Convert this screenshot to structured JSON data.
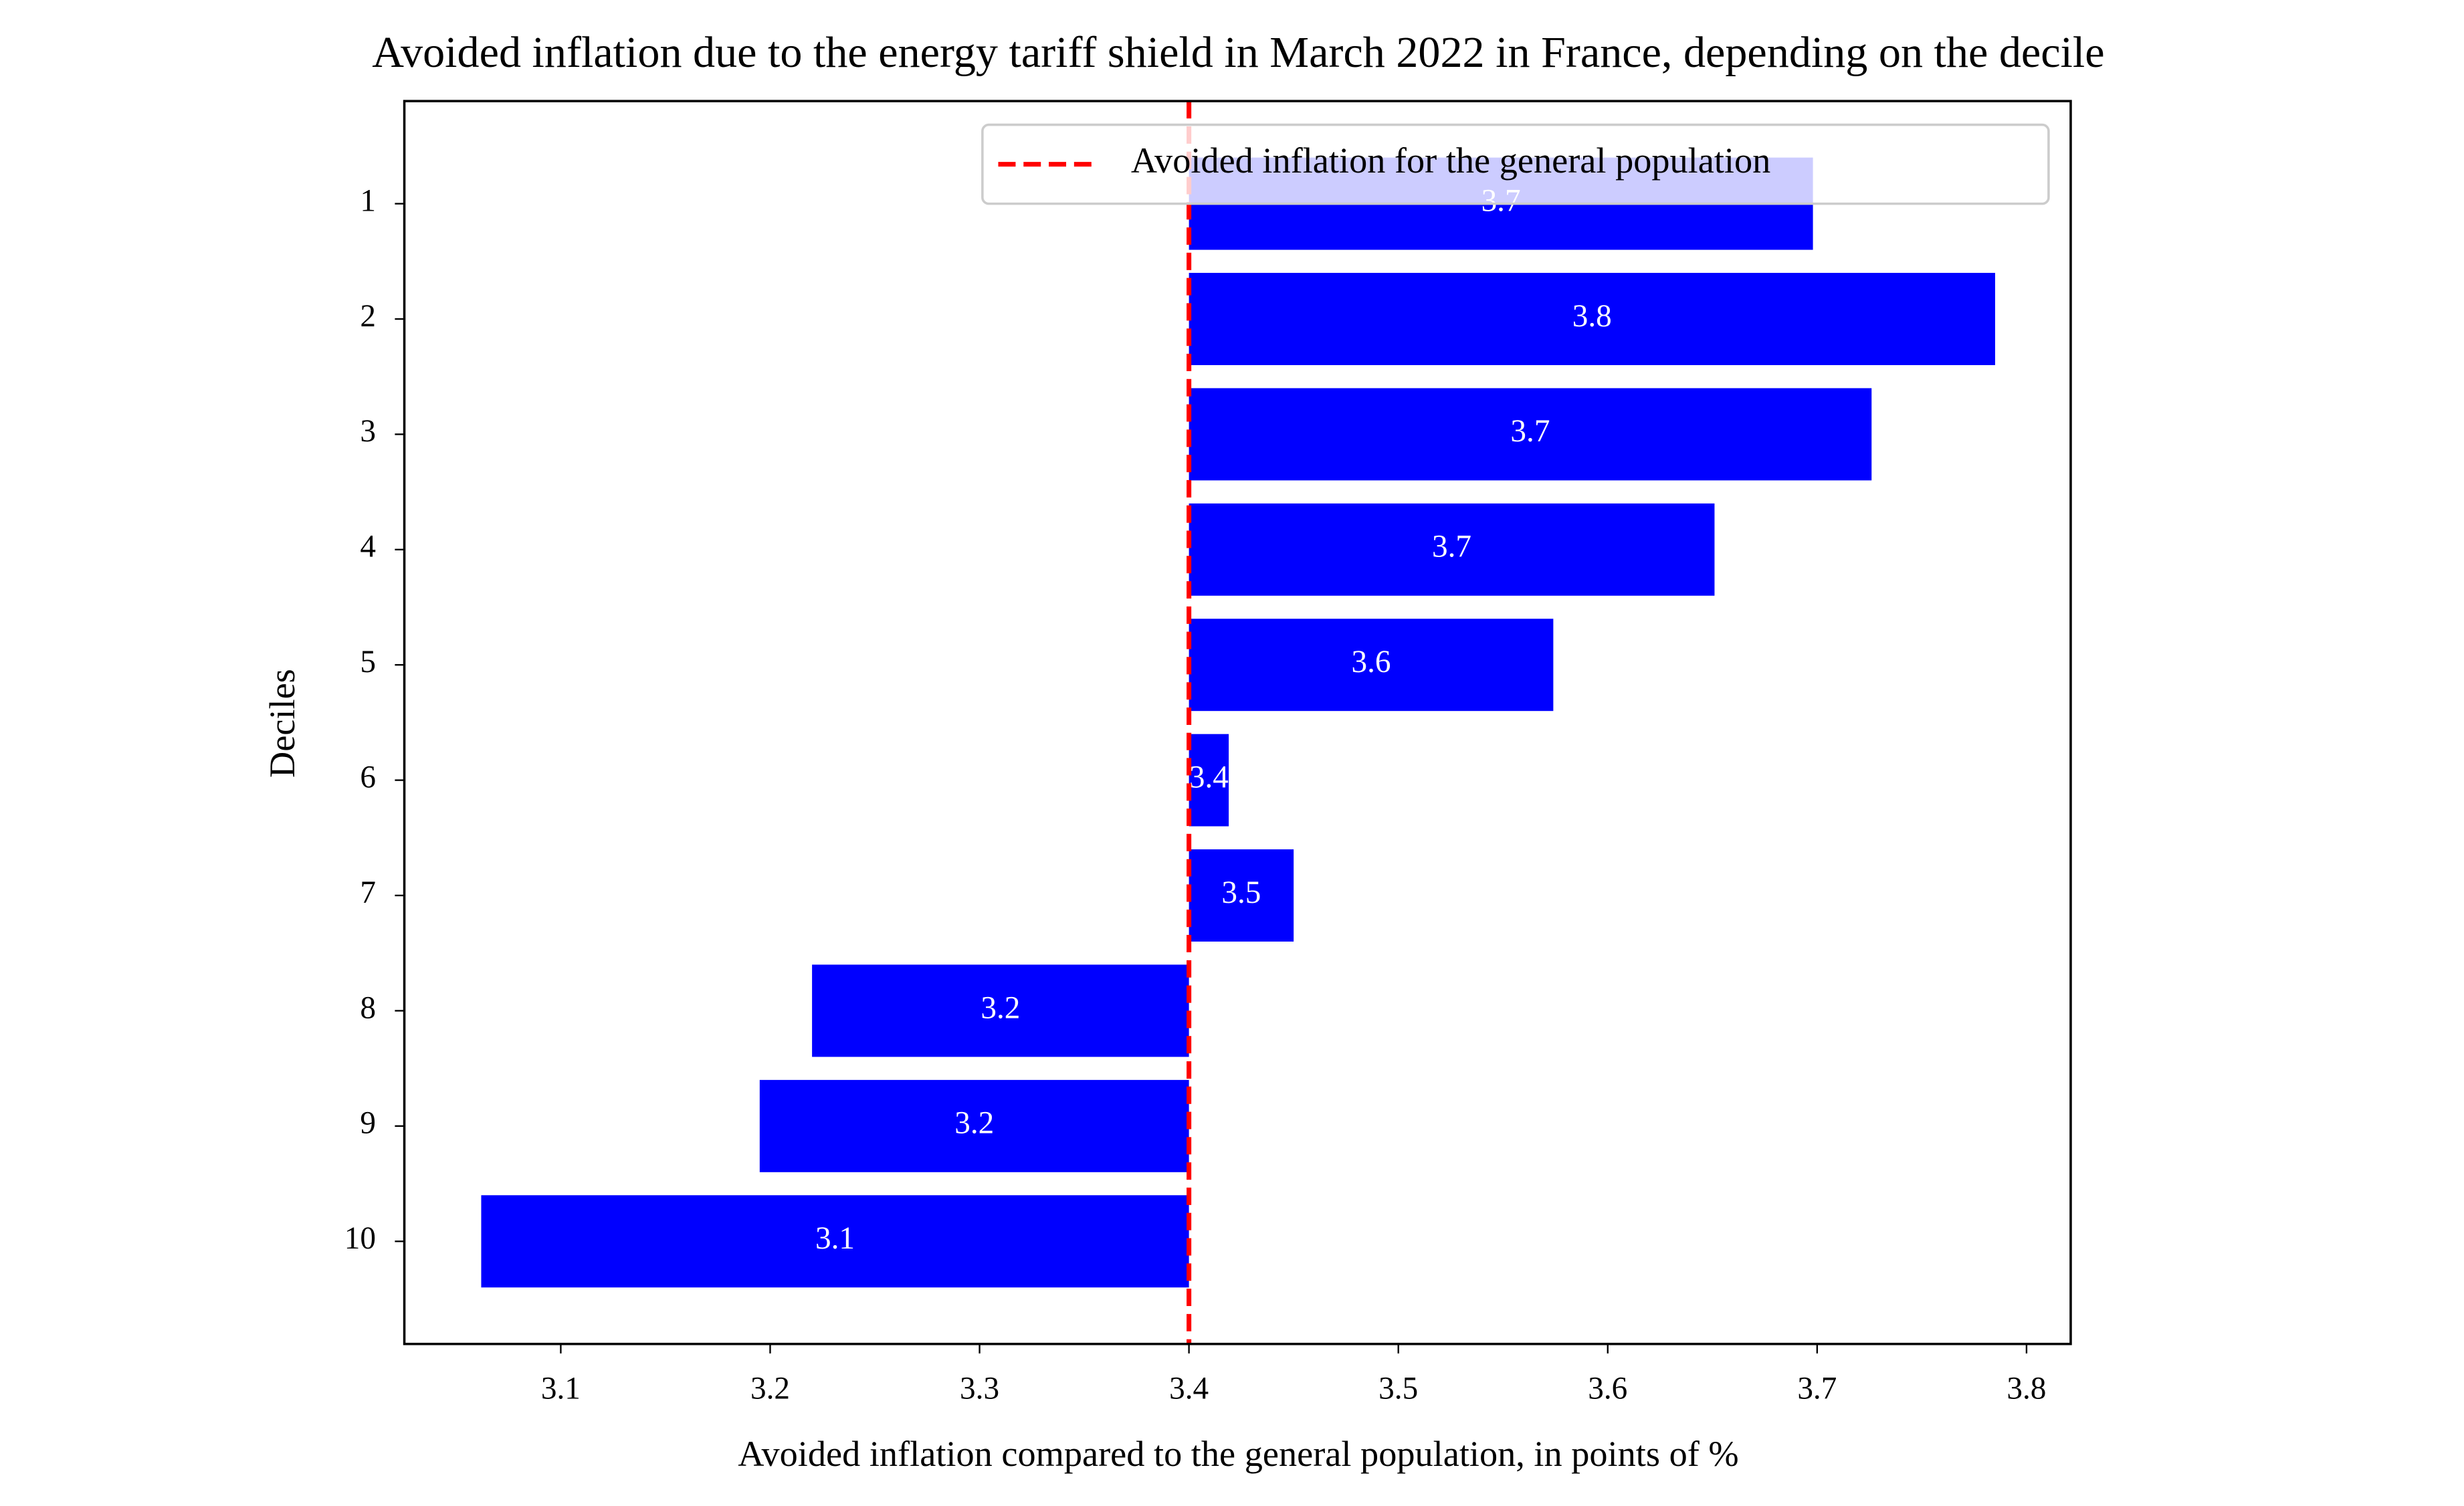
{
  "chart_data": {
    "type": "hbar",
    "title": "Avoided inflation due to the energy tariff shield in March 2022 in France, depending on the decile",
    "xlabel": "Avoided inflation compared to the general population, in points of %",
    "ylabel": "Deciles",
    "categories": [
      "1",
      "2",
      "3",
      "4",
      "5",
      "6",
      "7",
      "8",
      "9",
      "10"
    ],
    "base": 3.4,
    "values": [
      3.698,
      3.785,
      3.726,
      3.651,
      3.574,
      3.419,
      3.45,
      3.22,
      3.195,
      3.062
    ],
    "value_labels": [
      "3.7",
      "3.8",
      "3.7",
      "3.7",
      "3.6",
      "3.4",
      "3.5",
      "3.2",
      "3.2",
      "3.1"
    ],
    "color": "#0000ff",
    "xlim": [
      3.0253,
      3.8211
    ],
    "xticks": [
      3.1,
      3.2,
      3.3,
      3.4,
      3.5,
      3.6,
      3.7,
      3.8
    ],
    "reference_line": {
      "value": 3.4,
      "label": "Avoided inflation for the general population",
      "color": "#ff0000"
    },
    "legend": "upper right"
  }
}
